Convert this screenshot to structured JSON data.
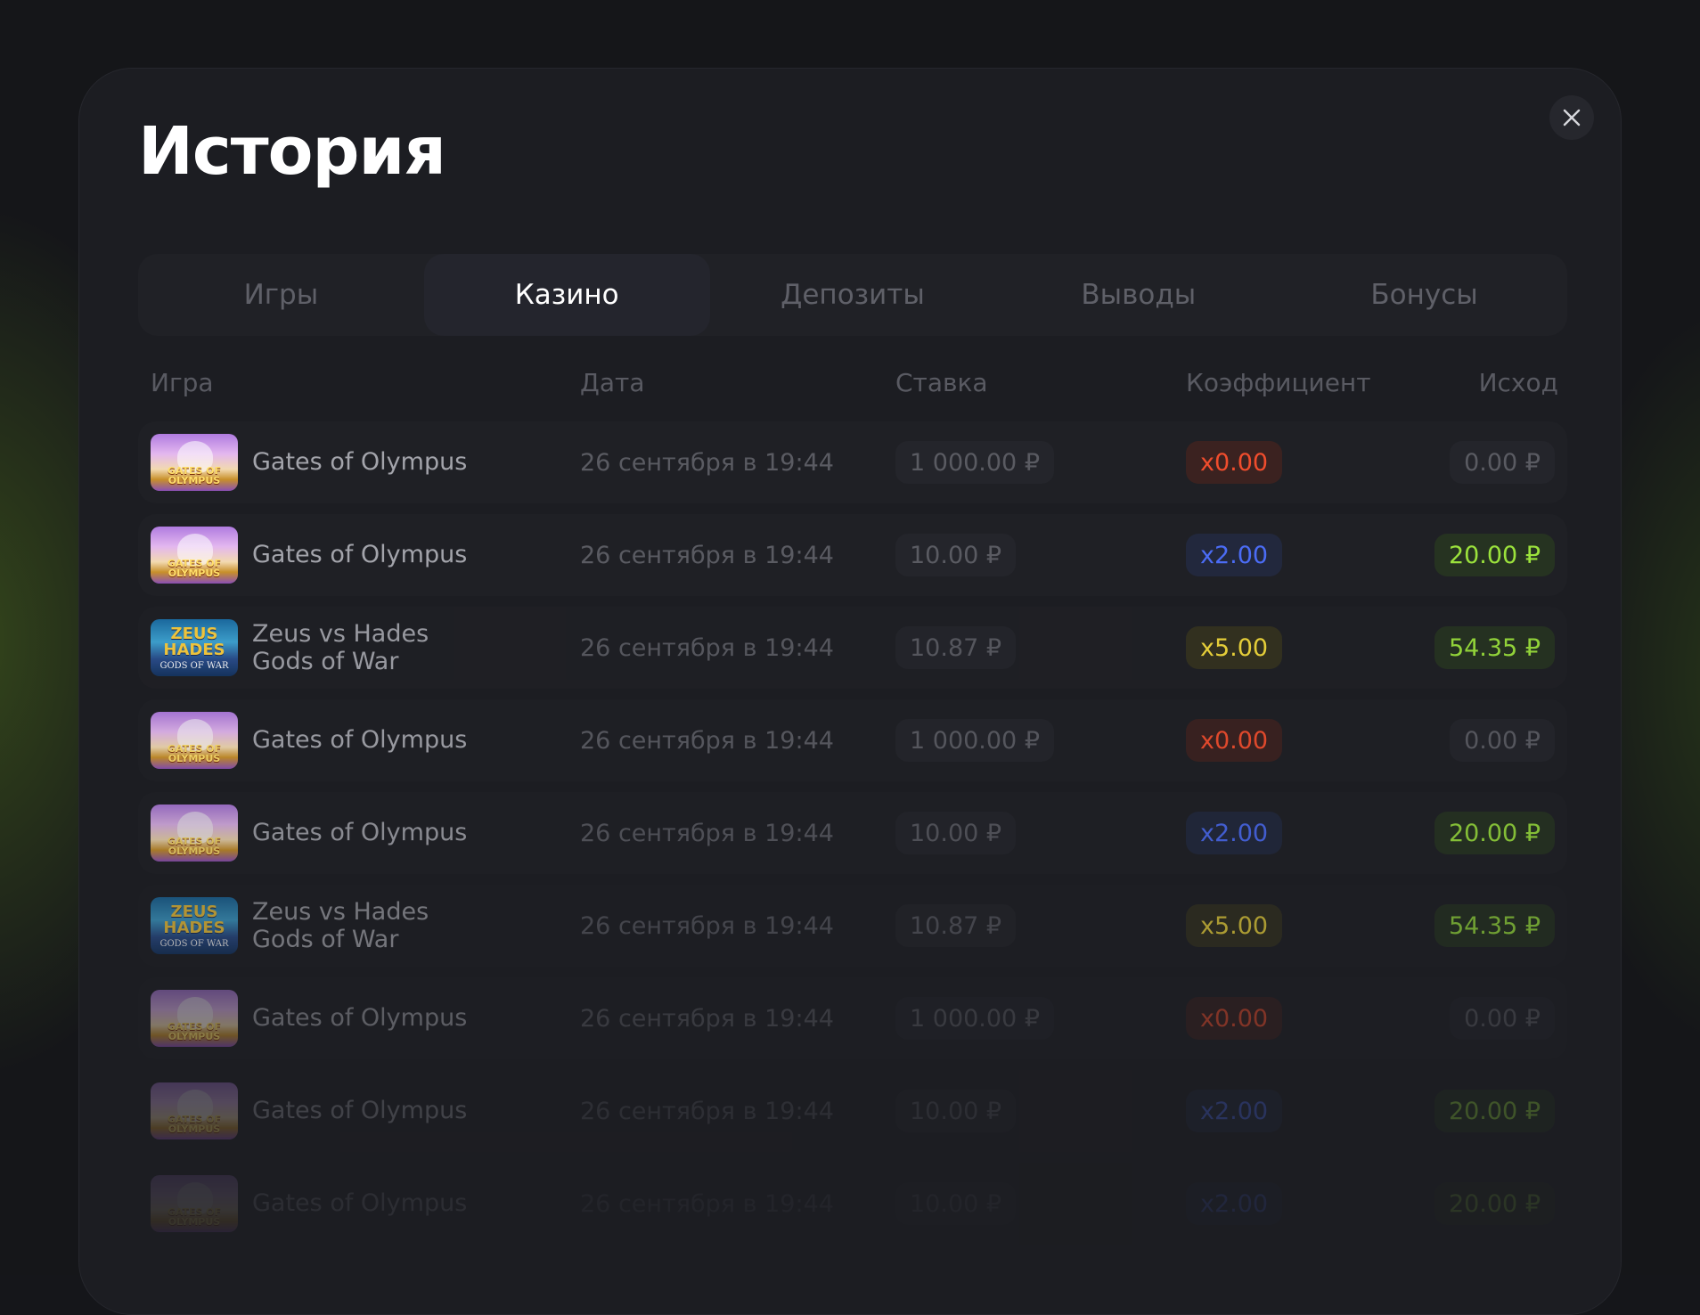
{
  "title": "История",
  "tabs": [
    {
      "label": "Игры",
      "active": false
    },
    {
      "label": "Казино",
      "active": true
    },
    {
      "label": "Депозиты",
      "active": false
    },
    {
      "label": "Выводы",
      "active": false
    },
    {
      "label": "Бонусы",
      "active": false
    }
  ],
  "columns": {
    "game": "Игра",
    "date": "Дата",
    "bet": "Ставка",
    "coef": "Коэффициент",
    "outcome": "Исход"
  },
  "rows": [
    {
      "game": "Gates of Olympus",
      "date": "26 сентября в 19:44",
      "bet": "1 000.00 ₽",
      "coef": "x0.00",
      "outcome": "0.00 ₽"
    },
    {
      "game": "Gates of Olympus",
      "date": "26 сентября в 19:44",
      "bet": "10.00 ₽",
      "coef": "x2.00",
      "outcome": "20.00 ₽"
    },
    {
      "game": "Zeus vs Hades Gods of War",
      "date": "26 сентября в 19:44",
      "bet": "10.87 ₽",
      "coef": "x5.00",
      "outcome": "54.35 ₽"
    },
    {
      "game": "Gates of Olympus",
      "date": "26 сентября в 19:44",
      "bet": "1 000.00 ₽",
      "coef": "x0.00",
      "outcome": "0.00 ₽"
    },
    {
      "game": "Gates of Olympus",
      "date": "26 сентября в 19:44",
      "bet": "10.00 ₽",
      "coef": "x2.00",
      "outcome": "20.00 ₽"
    },
    {
      "game": "Zeus vs Hades Gods of War",
      "date": "26 сентября в 19:44",
      "bet": "10.87 ₽",
      "coef": "x5.00",
      "outcome": "54.35 ₽"
    },
    {
      "game": "Gates of Olympus",
      "date": "26 сентября в 19:44",
      "bet": "1 000.00 ₽",
      "coef": "x0.00",
      "outcome": "0.00 ₽"
    },
    {
      "game": "Gates of Olympus",
      "date": "26 сентября в 19:44",
      "bet": "10.00 ₽",
      "coef": "x2.00",
      "outcome": "20.00 ₽"
    },
    {
      "game": "Gates of Olympus",
      "date": "26 сентября в 19:44",
      "bet": "10.00 ₽",
      "coef": "x2.00",
      "outcome": "20.00 ₽"
    }
  ],
  "thumbs": {
    "olympus_logo": "GATES OF OLYMPUS",
    "zeus_logo": "ZEUS HADES",
    "zeus_sub": "GODS OF WAR"
  },
  "icons": {
    "close": "close-icon"
  },
  "colors": {
    "accent_win": "#9be23c",
    "coef_red": "#f04d2d",
    "coef_blue": "#4b6cf5",
    "coef_yellow": "#f5dc3c"
  }
}
